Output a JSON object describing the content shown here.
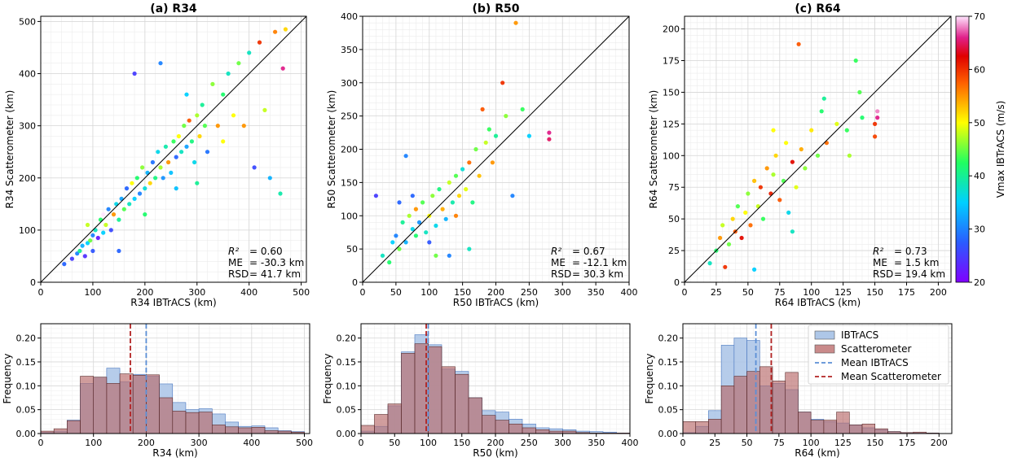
{
  "chart_data": [
    {
      "type": "scatter",
      "title": "(a) R34",
      "xlabel": "R34 IBTrACS (km)",
      "ylabel": "R34 Scatterometer (km)",
      "xlim": [
        0,
        510
      ],
      "ylim": [
        0,
        510
      ],
      "xticks": [
        "0",
        "100",
        "200",
        "300",
        "400",
        "500"
      ],
      "yticks": [
        "0",
        "100",
        "200",
        "300",
        "400",
        "500"
      ],
      "color_variable": "Vmax IBTrACS (m/s)",
      "identity_line": true,
      "grid": true,
      "stats": [
        {
          "label": "R²",
          "value": "= 0.60"
        },
        {
          "label": "ME",
          "value": "= -30.3 km"
        },
        {
          "label": "RSD",
          "value": "= 41.7 km"
        }
      ],
      "points": [
        [
          45,
          35,
          28
        ],
        [
          60,
          45,
          25
        ],
        [
          70,
          55,
          30
        ],
        [
          75,
          60,
          40
        ],
        [
          80,
          70,
          33
        ],
        [
          85,
          50,
          24
        ],
        [
          90,
          75,
          35
        ],
        [
          95,
          80,
          45
        ],
        [
          100,
          90,
          30
        ],
        [
          100,
          60,
          27
        ],
        [
          105,
          100,
          38
        ],
        [
          110,
          85,
          22
        ],
        [
          115,
          120,
          42
        ],
        [
          120,
          95,
          35
        ],
        [
          125,
          110,
          48
        ],
        [
          130,
          140,
          30
        ],
        [
          135,
          100,
          26
        ],
        [
          140,
          130,
          55
        ],
        [
          145,
          150,
          36
        ],
        [
          150,
          120,
          40
        ],
        [
          155,
          160,
          32
        ],
        [
          160,
          140,
          44
        ],
        [
          165,
          180,
          28
        ],
        [
          170,
          150,
          38
        ],
        [
          175,
          190,
          50
        ],
        [
          180,
          160,
          35
        ],
        [
          185,
          200,
          42
        ],
        [
          190,
          170,
          30
        ],
        [
          195,
          220,
          46
        ],
        [
          200,
          180,
          37
        ],
        [
          205,
          210,
          33
        ],
        [
          210,
          190,
          52
        ],
        [
          215,
          230,
          29
        ],
        [
          220,
          200,
          41
        ],
        [
          225,
          250,
          36
        ],
        [
          230,
          220,
          47
        ],
        [
          235,
          200,
          31
        ],
        [
          240,
          260,
          39
        ],
        [
          245,
          230,
          55
        ],
        [
          250,
          210,
          34
        ],
        [
          255,
          270,
          43
        ],
        [
          260,
          240,
          28
        ],
        [
          265,
          280,
          50
        ],
        [
          270,
          250,
          38
        ],
        [
          275,
          300,
          45
        ],
        [
          280,
          260,
          32
        ],
        [
          285,
          310,
          58
        ],
        [
          290,
          270,
          41
        ],
        [
          295,
          230,
          36
        ],
        [
          300,
          320,
          47
        ],
        [
          305,
          280,
          52
        ],
        [
          310,
          340,
          40
        ],
        [
          315,
          300,
          44
        ],
        [
          320,
          250,
          29
        ],
        [
          330,
          380,
          46
        ],
        [
          340,
          300,
          55
        ],
        [
          350,
          360,
          42
        ],
        [
          360,
          400,
          38
        ],
        [
          370,
          320,
          50
        ],
        [
          380,
          420,
          45
        ],
        [
          390,
          300,
          55
        ],
        [
          400,
          440,
          38
        ],
        [
          410,
          220,
          26
        ],
        [
          420,
          460,
          60
        ],
        [
          430,
          330,
          48
        ],
        [
          440,
          200,
          33
        ],
        [
          450,
          480,
          56
        ],
        [
          460,
          170,
          39
        ],
        [
          470,
          485,
          52
        ],
        [
          465,
          410,
          66
        ],
        [
          180,
          400,
          25
        ],
        [
          230,
          420,
          30
        ],
        [
          120,
          130,
          70
        ],
        [
          150,
          60,
          28
        ],
        [
          90,
          110,
          48
        ],
        [
          260,
          180,
          34
        ],
        [
          300,
          190,
          40
        ],
        [
          200,
          130,
          42
        ],
        [
          350,
          270,
          50
        ],
        [
          280,
          360,
          35
        ]
      ]
    },
    {
      "type": "scatter",
      "title": "(b) R50",
      "xlabel": "R50 IBTrACS (km)",
      "ylabel": "R50 Scatterometer (km)",
      "xlim": [
        0,
        400
      ],
      "ylim": [
        0,
        400
      ],
      "xticks": [
        "0",
        "50",
        "100",
        "150",
        "200",
        "250",
        "300",
        "350",
        "400"
      ],
      "yticks": [
        "0",
        "50",
        "100",
        "150",
        "200",
        "250",
        "300",
        "350",
        "400"
      ],
      "color_variable": "Vmax IBTrACS (m/s)",
      "identity_line": true,
      "grid": true,
      "stats": [
        {
          "label": "R²",
          "value": "= 0.67"
        },
        {
          "label": "ME",
          "value": "= -12.1 km"
        },
        {
          "label": "RSD",
          "value": "= 30.3 km"
        }
      ],
      "points": [
        [
          20,
          130,
          25
        ],
        [
          30,
          40,
          38
        ],
        [
          40,
          30,
          42
        ],
        [
          45,
          60,
          35
        ],
        [
          50,
          70,
          30
        ],
        [
          55,
          50,
          45
        ],
        [
          55,
          120,
          28
        ],
        [
          60,
          90,
          40
        ],
        [
          65,
          60,
          33
        ],
        [
          65,
          190,
          30
        ],
        [
          70,
          100,
          47
        ],
        [
          75,
          80,
          36
        ],
        [
          80,
          70,
          42
        ],
        [
          80,
          110,
          55
        ],
        [
          85,
          90,
          31
        ],
        [
          90,
          120,
          44
        ],
        [
          95,
          75,
          38
        ],
        [
          100,
          100,
          50
        ],
        [
          100,
          60,
          27
        ],
        [
          105,
          130,
          46
        ],
        [
          110,
          85,
          36
        ],
        [
          115,
          140,
          41
        ],
        [
          120,
          110,
          54
        ],
        [
          125,
          95,
          33
        ],
        [
          130,
          150,
          48
        ],
        [
          135,
          120,
          39
        ],
        [
          140,
          100,
          56
        ],
        [
          140,
          160,
          44
        ],
        [
          145,
          130,
          52
        ],
        [
          150,
          170,
          37
        ],
        [
          155,
          140,
          49
        ],
        [
          160,
          180,
          57
        ],
        [
          165,
          120,
          41
        ],
        [
          170,
          200,
          45
        ],
        [
          175,
          160,
          53
        ],
        [
          180,
          260,
          58
        ],
        [
          185,
          210,
          48
        ],
        [
          190,
          230,
          43
        ],
        [
          195,
          180,
          55
        ],
        [
          200,
          220,
          40
        ],
        [
          210,
          300,
          60
        ],
        [
          215,
          250,
          46
        ],
        [
          225,
          130,
          30
        ],
        [
          230,
          390,
          55
        ],
        [
          240,
          260,
          43
        ],
        [
          250,
          220,
          35
        ],
        [
          280,
          225,
          66
        ],
        [
          280,
          215,
          65
        ],
        [
          160,
          50,
          38
        ],
        [
          130,
          40,
          30
        ],
        [
          110,
          40,
          45
        ],
        [
          75,
          130,
          28
        ]
      ]
    },
    {
      "type": "scatter",
      "title": "(c) R64",
      "xlabel": "R64 IBTrACS (km)",
      "ylabel": "R64 Scatterometer (km)",
      "xlim": [
        0,
        210
      ],
      "ylim": [
        0,
        210
      ],
      "xticks": [
        "0",
        "25",
        "50",
        "75",
        "100",
        "125",
        "150",
        "175",
        "200"
      ],
      "yticks": [
        "0",
        "25",
        "50",
        "75",
        "100",
        "125",
        "150",
        "175",
        "200"
      ],
      "color_variable": "Vmax IBTrACS (m/s)",
      "identity_line": true,
      "grid": true,
      "stats": [
        {
          "label": "R²",
          "value": "= 0.73"
        },
        {
          "label": "ME",
          "value": "= 1.5 km"
        },
        {
          "label": "RSD",
          "value": "= 19.4 km"
        }
      ],
      "points": [
        [
          20,
          15,
          38
        ],
        [
          25,
          25,
          42
        ],
        [
          28,
          35,
          55
        ],
        [
          30,
          45,
          48
        ],
        [
          32,
          12,
          60
        ],
        [
          35,
          30,
          45
        ],
        [
          38,
          50,
          52
        ],
        [
          40,
          40,
          58
        ],
        [
          42,
          60,
          44
        ],
        [
          45,
          35,
          62
        ],
        [
          48,
          55,
          50
        ],
        [
          50,
          70,
          46
        ],
        [
          52,
          45,
          57
        ],
        [
          55,
          80,
          53
        ],
        [
          55,
          10,
          35
        ],
        [
          58,
          60,
          48
        ],
        [
          60,
          75,
          60
        ],
        [
          62,
          50,
          43
        ],
        [
          65,
          90,
          55
        ],
        [
          68,
          70,
          61
        ],
        [
          70,
          85,
          47
        ],
        [
          72,
          100,
          52
        ],
        [
          75,
          65,
          58
        ],
        [
          78,
          80,
          44
        ],
        [
          80,
          110,
          50
        ],
        [
          82,
          55,
          36
        ],
        [
          85,
          95,
          62
        ],
        [
          88,
          75,
          49
        ],
        [
          90,
          188,
          58
        ],
        [
          92,
          105,
          54
        ],
        [
          95,
          90,
          46
        ],
        [
          100,
          120,
          51
        ],
        [
          105,
          100,
          45
        ],
        [
          108,
          135,
          42
        ],
        [
          110,
          145,
          40
        ],
        [
          112,
          110,
          57
        ],
        [
          120,
          125,
          49
        ],
        [
          128,
          120,
          43
        ],
        [
          130,
          100,
          47
        ],
        [
          135,
          175,
          43
        ],
        [
          138,
          150,
          44
        ],
        [
          140,
          130,
          42
        ],
        [
          150,
          125,
          60
        ],
        [
          150,
          115,
          59
        ],
        [
          152,
          135,
          68
        ],
        [
          152,
          130,
          66
        ],
        [
          85,
          40,
          38
        ],
        [
          70,
          120,
          50
        ]
      ]
    },
    {
      "type": "histogram",
      "xlabel": "R34 (km)",
      "ylabel": "Frequency",
      "xlim": [
        0,
        510
      ],
      "ylim": [
        0,
        0.23
      ],
      "xticks": [
        "0",
        "100",
        "200",
        "300",
        "400",
        "500"
      ],
      "yticks": [
        "0.00",
        "0.05",
        "0.10",
        "0.15",
        "0.20"
      ],
      "bin_width": 25,
      "series": [
        {
          "name": "IBTrACS",
          "values": [
            0.002,
            0.005,
            0.028,
            0.105,
            0.118,
            0.137,
            0.108,
            0.124,
            0.12,
            0.104,
            0.065,
            0.05,
            0.052,
            0.041,
            0.024,
            0.015,
            0.016,
            0.012,
            0.006,
            0.004
          ]
        },
        {
          "name": "Scatterometer",
          "values": [
            0.005,
            0.01,
            0.027,
            0.12,
            0.118,
            0.105,
            0.125,
            0.122,
            0.123,
            0.075,
            0.047,
            0.044,
            0.045,
            0.018,
            0.014,
            0.012,
            0.013,
            0.006,
            0.005,
            0.003
          ]
        }
      ],
      "mean_lines": [
        {
          "name": "Mean IBTrACS",
          "value": 200
        },
        {
          "name": "Mean Scatterometer",
          "value": 170
        }
      ]
    },
    {
      "type": "histogram",
      "xlabel": "R50 (km)",
      "ylabel": "Frequency",
      "xlim": [
        0,
        400
      ],
      "ylim": [
        0,
        0.23
      ],
      "xticks": [
        "0",
        "50",
        "100",
        "150",
        "200",
        "250",
        "300",
        "350",
        "400"
      ],
      "yticks": [
        "0.00",
        "0.05",
        "0.10",
        "0.15",
        "0.20"
      ],
      "bin_width": 20,
      "series": [
        {
          "name": "IBTrACS",
          "values": [
            0.005,
            0.015,
            0.058,
            0.171,
            0.207,
            0.186,
            0.135,
            0.13,
            0.075,
            0.048,
            0.045,
            0.03,
            0.02,
            0.012,
            0.01,
            0.008,
            0.005,
            0.004,
            0.003,
            0.001
          ]
        },
        {
          "name": "Scatterometer",
          "values": [
            0.017,
            0.04,
            0.062,
            0.168,
            0.188,
            0.182,
            0.14,
            0.124,
            0.075,
            0.038,
            0.028,
            0.02,
            0.012,
            0.008,
            0.005,
            0.005,
            0.002,
            0.001,
            0.001,
            0.001
          ]
        }
      ],
      "mean_lines": [
        {
          "name": "Mean IBTrACS",
          "value": 100
        },
        {
          "name": "Mean Scatterometer",
          "value": 97
        }
      ]
    },
    {
      "type": "histogram",
      "xlabel": "R64 (km)",
      "ylabel": "Frequency",
      "xlim": [
        0,
        210
      ],
      "ylim": [
        0,
        0.23
      ],
      "xticks": [
        "0",
        "25",
        "50",
        "75",
        "100",
        "125",
        "150",
        "175",
        "200"
      ],
      "yticks": [
        "0.00",
        "0.05",
        "0.10",
        "0.15",
        "0.20"
      ],
      "bin_width": 10,
      "series": [
        {
          "name": "IBTrACS",
          "values": [
            0.002,
            0.015,
            0.048,
            0.185,
            0.2,
            0.195,
            0.1,
            0.105,
            0.092,
            0.045,
            0.03,
            0.025,
            0.022,
            0.018,
            0.012,
            0.008,
            0.004,
            0.002,
            0.001,
            0.001
          ]
        },
        {
          "name": "Scatterometer",
          "values": [
            0.025,
            0.025,
            0.03,
            0.1,
            0.12,
            0.13,
            0.14,
            0.11,
            0.128,
            0.045,
            0.028,
            0.028,
            0.045,
            0.018,
            0.02,
            0.01,
            0.004,
            0.002,
            0.003,
            0.001
          ]
        }
      ],
      "mean_lines": [
        {
          "name": "Mean IBTrACS",
          "value": 57
        },
        {
          "name": "Mean Scatterometer",
          "value": 69
        }
      ]
    }
  ],
  "legend": {
    "items": [
      {
        "label": "IBTrACS",
        "kind": "patch",
        "color": "#aec7e8"
      },
      {
        "label": "Scatterometer",
        "kind": "patch",
        "color": "#c98a8a"
      },
      {
        "label": "Mean IBTrACS",
        "kind": "dash",
        "color": "#5b8fd6"
      },
      {
        "label": "Mean Scatterometer",
        "kind": "dash",
        "color": "#b22222"
      }
    ]
  },
  "colorbar": {
    "label": "Vmax IBTrACS (m/s)",
    "min": 20,
    "max": 70,
    "ticks": [
      "20",
      "30",
      "40",
      "50",
      "60",
      "70"
    ]
  },
  "colors": {
    "ibtracs_fill": "#aec7e8",
    "ibtracs_edge": "#4a78c0",
    "scat_fill": "#b96a6a",
    "mean_ibtracs": "#5b8fd6",
    "mean_scat": "#b22222"
  }
}
